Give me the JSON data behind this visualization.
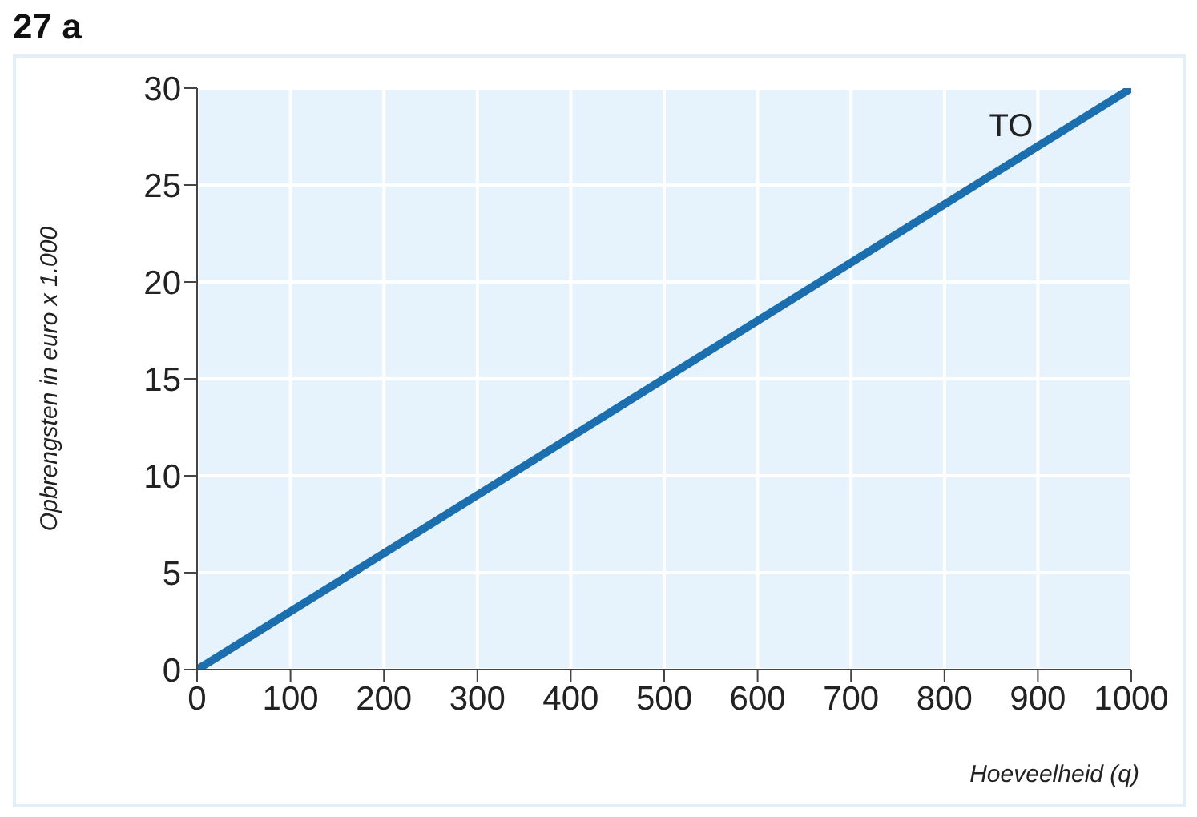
{
  "chart_data": {
    "type": "line",
    "title": "27 a",
    "xlabel": "Hoeveelheid (q)",
    "ylabel": "Opbrengsten in euro x 1.000",
    "x": [
      0,
      1000
    ],
    "series": [
      {
        "name": "TO",
        "color": "#1b6fae",
        "values": [
          0,
          30
        ]
      }
    ],
    "xlim": [
      0,
      1000
    ],
    "xticks": [
      0,
      100,
      200,
      300,
      400,
      500,
      600,
      700,
      800,
      900,
      1000
    ],
    "ylim": [
      0,
      30
    ],
    "yticks": [
      0,
      5,
      10,
      15,
      20,
      25,
      30
    ],
    "grid": true,
    "marker": "none",
    "line_style": "solid"
  }
}
